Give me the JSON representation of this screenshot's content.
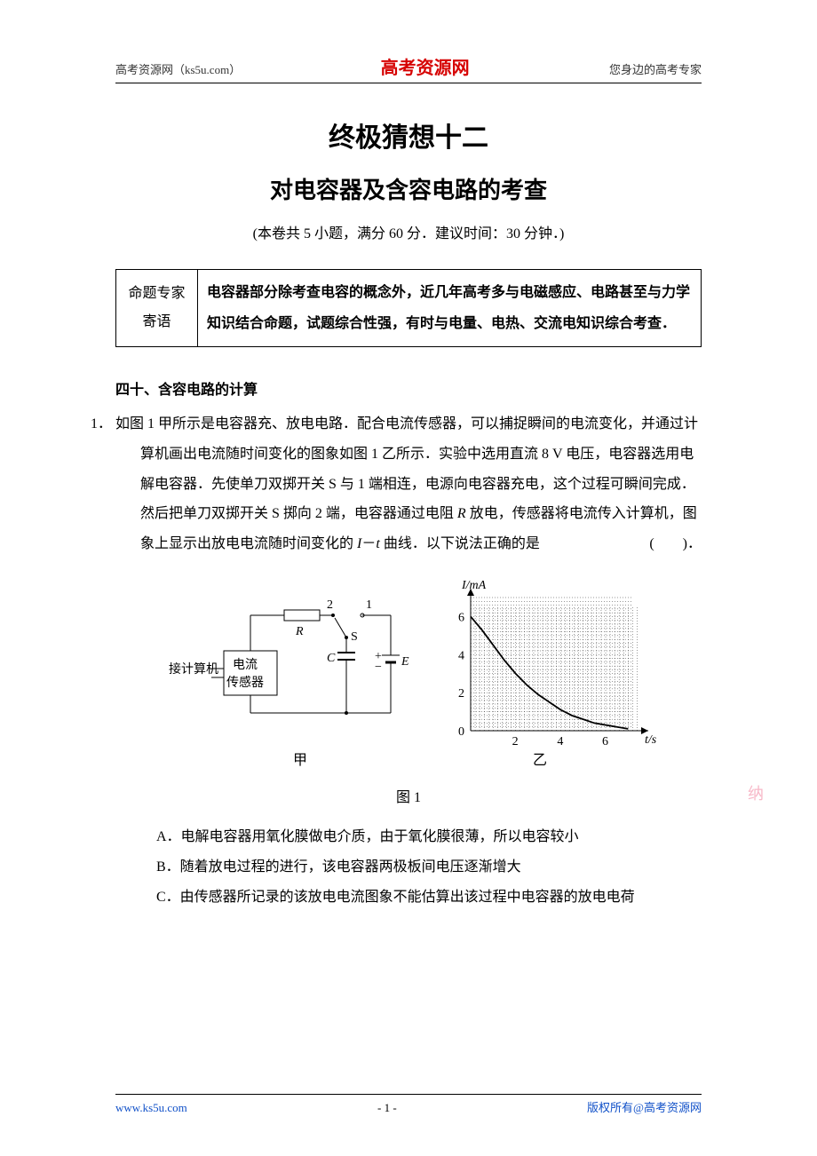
{
  "header": {
    "left": "高考资源网（ks5u.com）",
    "center": "高考资源网",
    "right": "您身边的高考专家"
  },
  "titles": {
    "main": "终极猜想十二",
    "sub": "对电容器及含容电路的考查",
    "exam_info": "(本卷共 5 小题，满分 60 分．建议时间：30 分钟．)"
  },
  "advice": {
    "label_line1": "命题专家",
    "label_line2": "寄语",
    "body": "电容器部分除考查电容的概念外，近几年高考多与电磁感应、电路甚至与力学知识结合命题，试题综合性强，有时与电量、电热、交流电知识综合考查．"
  },
  "section_title": "四十、含容电路的计算",
  "question1": {
    "num": "1．",
    "text_1": "如图 1 甲所示是电容器充、放电电路．配合电流传感器，可以捕捉瞬间的电流变化，并通过计算机画出电流随时间变化的图象如图 1 乙所示．实验中选用直流 8 V 电压，电容器选用电解电容器．先使单刀双掷开关 S 与 1 端相连，电源向电容器充电，这个过程可瞬间完成．然后把单刀双掷开关 S 掷向 2 端，电容器通过电阻 ",
    "text_R": "R",
    "text_2": " 放电，传感器将电流传入计算机，图象上显示出放电电流随时间变化的 ",
    "text_I": "I",
    "text_dash": "－",
    "text_t": "t",
    "text_3": " 曲线．以下说法正确的是",
    "paren": "(　　)．"
  },
  "figure": {
    "circuit": {
      "label_jie": "接计算机",
      "label_sensor1": "电流",
      "label_sensor2": "传感器",
      "label_R": "R",
      "label_2": "2",
      "label_1": "1",
      "label_S": "S",
      "label_C": "C",
      "label_plus": "+",
      "label_minus": "−",
      "label_E": "E",
      "sub_caption": "甲",
      "line_color": "#000000",
      "fill_color": "#ffffff"
    },
    "chart": {
      "type": "line",
      "y_label": "I/mA",
      "x_label": "t/s",
      "y_ticks": [
        "0",
        "2",
        "4",
        "6"
      ],
      "x_ticks": [
        "2",
        "4",
        "6"
      ],
      "ylim": [
        0,
        7
      ],
      "xlim": [
        0,
        7.5
      ],
      "grid_minor": true,
      "grid_color": "#000000",
      "curve_color": "#000000",
      "background_color": "#ffffff",
      "sub_caption": "乙",
      "data_points": [
        {
          "t": 0.0,
          "I": 6.0
        },
        {
          "t": 0.5,
          "I": 5.3
        },
        {
          "t": 1.0,
          "I": 4.5
        },
        {
          "t": 1.5,
          "I": 3.7
        },
        {
          "t": 2.0,
          "I": 3.0
        },
        {
          "t": 2.5,
          "I": 2.4
        },
        {
          "t": 3.0,
          "I": 1.9
        },
        {
          "t": 3.5,
          "I": 1.5
        },
        {
          "t": 4.0,
          "I": 1.1
        },
        {
          "t": 4.5,
          "I": 0.8
        },
        {
          "t": 5.0,
          "I": 0.6
        },
        {
          "t": 5.5,
          "I": 0.4
        },
        {
          "t": 6.0,
          "I": 0.3
        },
        {
          "t": 6.5,
          "I": 0.2
        },
        {
          "t": 7.0,
          "I": 0.1
        }
      ]
    },
    "caption": "图 1"
  },
  "options": {
    "A": "A．电解电容器用氧化膜做电介质，由于氧化膜很薄，所以电容较小",
    "B": "B．随着放电过程的进行，该电容器两极板间电压逐渐增大",
    "C": "C．由传感器所记录的该放电电流图象不能估算出该过程中电容器的放电电荷"
  },
  "footer": {
    "left": "www.ks5u.com",
    "center": "- 1 -",
    "right": "版权所有@高考资源网"
  },
  "watermark": "纳"
}
